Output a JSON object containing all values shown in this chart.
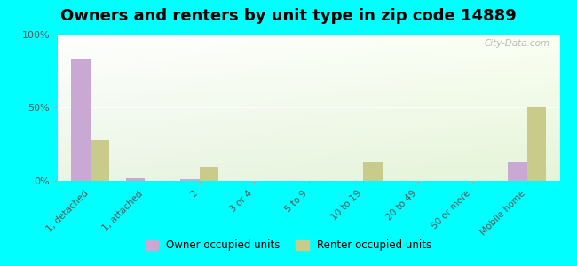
{
  "title": "Owners and renters by unit type in zip code 14889",
  "categories": [
    "1, detached",
    "1, attached",
    "2",
    "3 or 4",
    "5 to 9",
    "10 to 19",
    "20 to 49",
    "50 or more",
    "Mobile home"
  ],
  "owner_values": [
    83,
    2,
    1,
    0,
    0,
    0,
    0,
    0,
    13
  ],
  "renter_values": [
    28,
    0,
    10,
    0,
    0,
    13,
    0,
    0,
    50
  ],
  "owner_color": "#c9a8d4",
  "renter_color": "#c8cb8a",
  "background_color": "#00ffff",
  "ylim": [
    0,
    100
  ],
  "yticks": [
    0,
    50,
    100
  ],
  "ytick_labels": [
    "0%",
    "50%",
    "100%"
  ],
  "legend_owner": "Owner occupied units",
  "legend_renter": "Renter occupied units",
  "title_fontsize": 13,
  "watermark": "City-Data.com"
}
